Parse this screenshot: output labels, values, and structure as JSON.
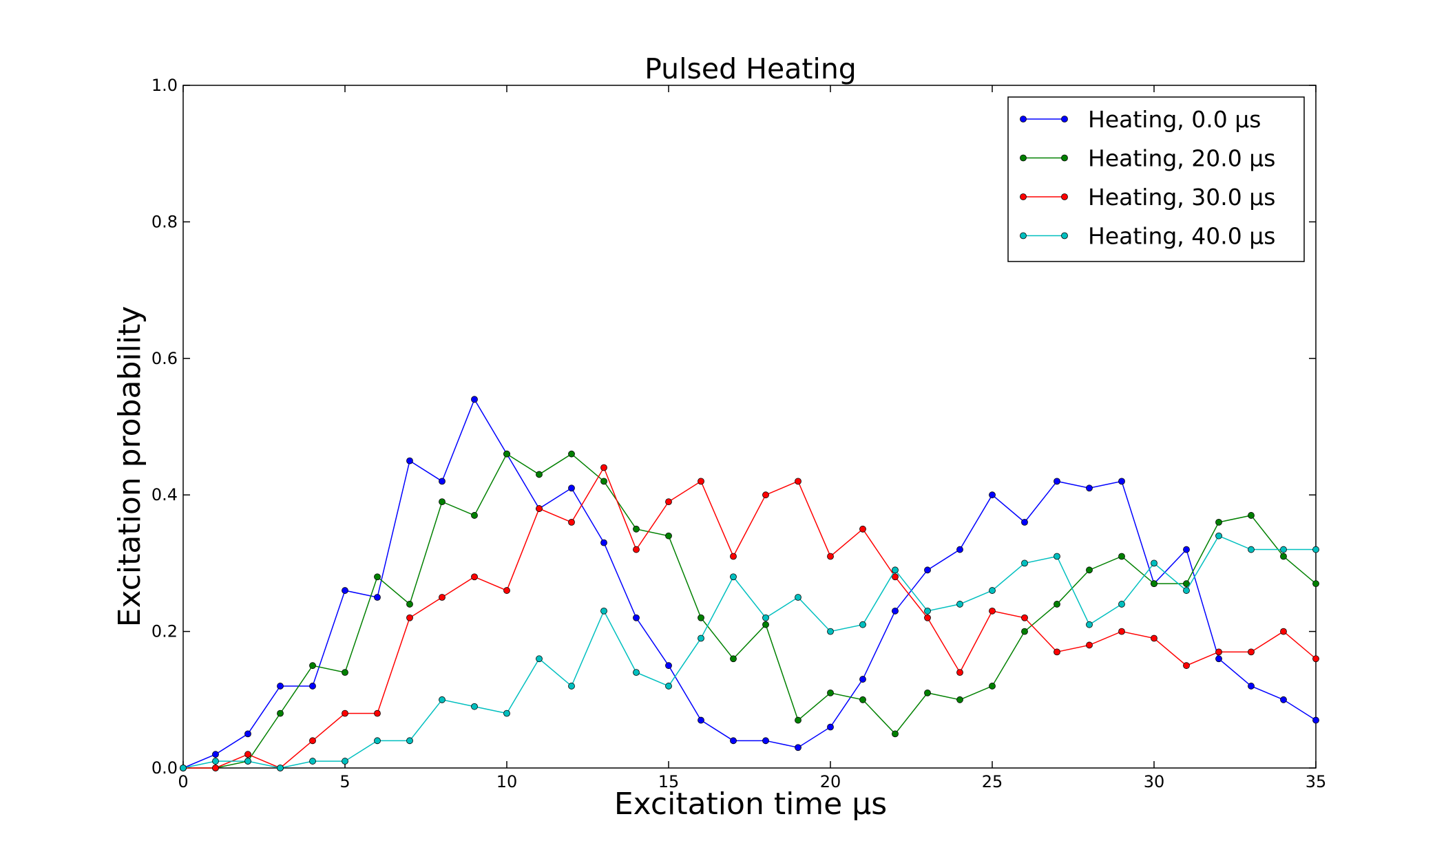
{
  "chart_data": {
    "type": "line",
    "title": "Pulsed Heating",
    "xlabel": "Excitation time μs",
    "ylabel": "Excitation probability",
    "xlim": [
      0,
      35
    ],
    "ylim": [
      0.0,
      1.0
    ],
    "xticks": [
      "0",
      "5",
      "10",
      "15",
      "20",
      "25",
      "30",
      "35"
    ],
    "yticks": [
      "0.0",
      "0.2",
      "0.4",
      "0.6",
      "0.8",
      "1.0"
    ],
    "grid": false,
    "legend_position": "top-right",
    "x": [
      0,
      1,
      2,
      3,
      4,
      5,
      6,
      7,
      8,
      9,
      10,
      11,
      12,
      13,
      14,
      15,
      16,
      17,
      18,
      19,
      20,
      21,
      22,
      23,
      24,
      25,
      26,
      27,
      28,
      29,
      30,
      31,
      32,
      33,
      34,
      35
    ],
    "series": [
      {
        "name": "Heating, 0.0 μs",
        "color": "#0000ff",
        "values": [
          0.0,
          0.02,
          0.05,
          0.12,
          0.12,
          0.26,
          0.25,
          0.45,
          0.42,
          0.54,
          0.46,
          0.38,
          0.41,
          0.33,
          0.22,
          0.15,
          0.07,
          0.04,
          0.04,
          0.03,
          0.06,
          0.13,
          0.23,
          0.29,
          0.32,
          0.4,
          0.36,
          0.42,
          0.41,
          0.42,
          0.27,
          0.32,
          0.16,
          0.12,
          0.1,
          0.07
        ]
      },
      {
        "name": "Heating, 20.0 μs",
        "color": "#008000",
        "values": [
          0.0,
          0.0,
          0.01,
          0.08,
          0.15,
          0.14,
          0.28,
          0.24,
          0.39,
          0.37,
          0.46,
          0.43,
          0.46,
          0.42,
          0.35,
          0.34,
          0.22,
          0.16,
          0.21,
          0.07,
          0.11,
          0.1,
          0.05,
          0.11,
          0.1,
          0.12,
          0.2,
          0.24,
          0.29,
          0.31,
          0.27,
          0.27,
          0.36,
          0.37,
          0.31,
          0.27
        ]
      },
      {
        "name": "Heating, 30.0 μs",
        "color": "#ff0000",
        "values": [
          0.0,
          0.0,
          0.02,
          0.0,
          0.04,
          0.08,
          0.08,
          0.22,
          0.25,
          0.28,
          0.26,
          0.38,
          0.36,
          0.44,
          0.32,
          0.39,
          0.42,
          0.31,
          0.4,
          0.42,
          0.31,
          0.35,
          0.28,
          0.22,
          0.14,
          0.23,
          0.22,
          0.17,
          0.18,
          0.2,
          0.19,
          0.15,
          0.17,
          0.17,
          0.2,
          0.16
        ]
      },
      {
        "name": "Heating, 40.0 μs",
        "color": "#00bfbf",
        "values": [
          0.0,
          0.01,
          0.01,
          0.0,
          0.01,
          0.01,
          0.04,
          0.04,
          0.1,
          0.09,
          0.08,
          0.16,
          0.12,
          0.23,
          0.14,
          0.12,
          0.19,
          0.28,
          0.22,
          0.25,
          0.2,
          0.21,
          0.29,
          0.23,
          0.24,
          0.26,
          0.3,
          0.31,
          0.21,
          0.24,
          0.3,
          0.26,
          0.34,
          0.32,
          0.32,
          0.32
        ]
      }
    ]
  }
}
